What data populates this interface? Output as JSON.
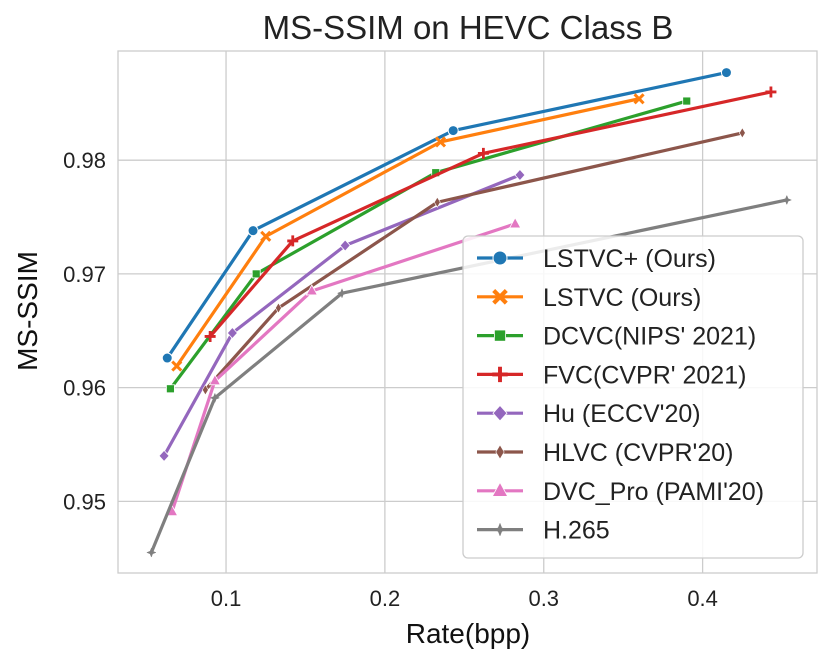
{
  "chart_data": {
    "type": "line",
    "title": "MS-SSIM on HEVC Class B",
    "xlabel": "Rate(bpp)",
    "ylabel": "MS-SSIM",
    "xlim": [
      0.032,
      0.472
    ],
    "ylim": [
      0.9437,
      0.9896
    ],
    "xticks": [
      0.1,
      0.2,
      0.3,
      0.4
    ],
    "xtick_labels": [
      "0.1",
      "0.2",
      "0.3",
      "0.4"
    ],
    "yticks": [
      0.95,
      0.96,
      0.97,
      0.98
    ],
    "ytick_labels": [
      "0.95",
      "0.96",
      "0.97",
      "0.98"
    ],
    "grid": true,
    "legend_position": "lower-right",
    "series": [
      {
        "name": "LSTVC+ (Ours)",
        "color": "#1f77b4",
        "marker": "circle",
        "x": [
          0.063,
          0.117,
          0.243,
          0.415
        ],
        "y": [
          0.9626,
          0.9738,
          0.9826,
          0.9877
        ]
      },
      {
        "name": "LSTVC (Ours)",
        "color": "#ff7f0e",
        "marker": "x",
        "x": [
          0.069,
          0.125,
          0.235,
          0.36
        ],
        "y": [
          0.9619,
          0.9733,
          0.9816,
          0.9854
        ]
      },
      {
        "name": "DCVC(NIPS' 2021)",
        "color": "#2ca02c",
        "marker": "square",
        "x": [
          0.065,
          0.119,
          0.232,
          0.39
        ],
        "y": [
          0.9599,
          0.97,
          0.9789,
          0.9852
        ]
      },
      {
        "name": "FVC(CVPR' 2021)",
        "color": "#d62728",
        "marker": "plus",
        "x": [
          0.09,
          0.142,
          0.262,
          0.443
        ],
        "y": [
          0.9645,
          0.9729,
          0.9806,
          0.986
        ]
      },
      {
        "name": "Hu (ECCV'20)",
        "color": "#9467bd",
        "marker": "diamond",
        "x": [
          0.061,
          0.104,
          0.175,
          0.285
        ],
        "y": [
          0.954,
          0.9648,
          0.9725,
          0.9787
        ]
      },
      {
        "name": "HLVC (CVPR'20)",
        "color": "#8c564b",
        "marker": "thin-diamond",
        "x": [
          0.087,
          0.133,
          0.233,
          0.425
        ],
        "y": [
          0.9598,
          0.967,
          0.9763,
          0.9824
        ]
      },
      {
        "name": "DVC_Pro (PAMI'20)",
        "color": "#e377c2",
        "marker": "triangle",
        "x": [
          0.066,
          0.093,
          0.154,
          0.282
        ],
        "y": [
          0.9491,
          0.9606,
          0.9685,
          0.9744
        ]
      },
      {
        "name": "H.265",
        "color": "#7f7f7f",
        "marker": "star",
        "x": [
          0.053,
          0.093,
          0.173,
          0.453
        ],
        "y": [
          0.9455,
          0.9591,
          0.9683,
          0.9765
        ]
      }
    ]
  }
}
